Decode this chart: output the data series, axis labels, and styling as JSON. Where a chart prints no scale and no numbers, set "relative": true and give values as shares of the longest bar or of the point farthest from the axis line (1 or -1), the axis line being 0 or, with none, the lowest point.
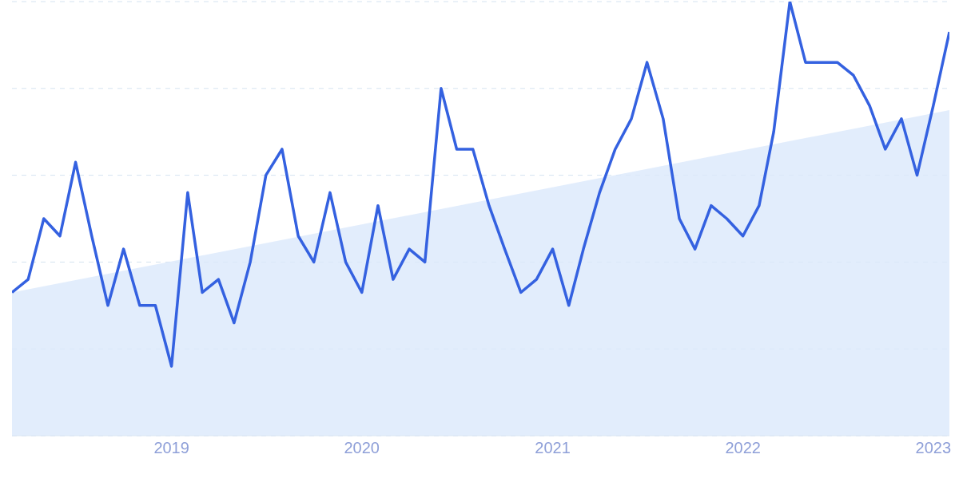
{
  "chart_data": {
    "type": "line",
    "relative": true,
    "grid": "y",
    "line_style": "solid",
    "marker": "none",
    "legend": false,
    "x": [
      "2018-03",
      "2018-04",
      "2018-05",
      "2018-06",
      "2018-07",
      "2018-08",
      "2018-09",
      "2018-10",
      "2018-11",
      "2018-12",
      "2019-01",
      "2019-02",
      "2019-03",
      "2019-04",
      "2019-05",
      "2019-06",
      "2019-07",
      "2019-08",
      "2019-09",
      "2019-10",
      "2019-11",
      "2019-12",
      "2020-01",
      "2020-02",
      "2020-03",
      "2020-04",
      "2020-05",
      "2020-06",
      "2020-07",
      "2020-08",
      "2020-09",
      "2020-10",
      "2020-11",
      "2020-12",
      "2021-01",
      "2021-02",
      "2021-03",
      "2021-04",
      "2021-05",
      "2021-06",
      "2021-07",
      "2021-08",
      "2021-09",
      "2021-10",
      "2021-11",
      "2021-12",
      "2022-01",
      "2022-02",
      "2022-03",
      "2022-04",
      "2022-05",
      "2022-06",
      "2022-07",
      "2022-08",
      "2022-09",
      "2022-10",
      "2022-11",
      "2022-12",
      "2023-01",
      "2023-02"
    ],
    "xlim": [
      "2018-03",
      "2023-02"
    ],
    "xticks": [
      "2019",
      "2020",
      "2021",
      "2022",
      "2023"
    ],
    "series": [
      {
        "type": "area",
        "color": "#dbe9fb",
        "x": [
          "2018-03",
          "2023-02"
        ],
        "values": [
          0.33,
          0.75
        ]
      },
      {
        "color": "#3461e0",
        "values": [
          0.33,
          0.36,
          0.5,
          0.46,
          0.63,
          0.46,
          0.3,
          0.43,
          0.3,
          0.3,
          0.16,
          0.56,
          0.33,
          0.36,
          0.26,
          0.4,
          0.6,
          0.66,
          0.46,
          0.4,
          0.56,
          0.4,
          0.33,
          0.53,
          0.36,
          0.43,
          0.4,
          0.8,
          0.66,
          0.66,
          0.53,
          0.43,
          0.33,
          0.36,
          0.43,
          0.3,
          0.43,
          0.56,
          0.66,
          0.73,
          0.86,
          0.73,
          0.5,
          0.43,
          0.53,
          0.5,
          0.46,
          0.53,
          0.7,
          1,
          0.86,
          0.86,
          0.86,
          0.83,
          0.76,
          0.66,
          0.73,
          0.6,
          0.76,
          0.93
        ]
      }
    ]
  }
}
